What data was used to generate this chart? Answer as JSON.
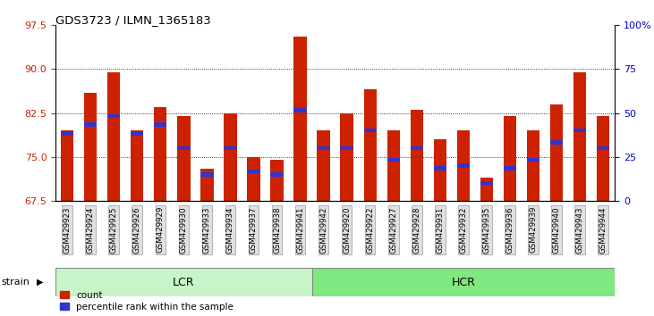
{
  "title": "GDS3723 / ILMN_1365183",
  "samples": [
    "GSM429923",
    "GSM429924",
    "GSM429925",
    "GSM429926",
    "GSM429929",
    "GSM429930",
    "GSM429933",
    "GSM429934",
    "GSM429937",
    "GSM429938",
    "GSM429941",
    "GSM429942",
    "GSM429920",
    "GSM429922",
    "GSM429927",
    "GSM429928",
    "GSM429931",
    "GSM429932",
    "GSM429935",
    "GSM429936",
    "GSM429939",
    "GSM429940",
    "GSM429943",
    "GSM429944"
  ],
  "count_values": [
    79.5,
    86.0,
    89.5,
    79.5,
    83.5,
    82.0,
    73.0,
    82.5,
    75.0,
    74.5,
    95.5,
    79.5,
    82.5,
    86.5,
    79.5,
    83.0,
    78.0,
    79.5,
    71.5,
    82.0,
    79.5,
    84.0,
    89.5,
    82.0
  ],
  "percentile_values": [
    79.0,
    80.5,
    82.0,
    79.0,
    80.5,
    76.5,
    72.0,
    76.5,
    72.5,
    72.0,
    83.0,
    76.5,
    76.5,
    79.5,
    74.5,
    76.5,
    73.0,
    73.5,
    70.5,
    73.0,
    74.5,
    77.5,
    79.5,
    76.5
  ],
  "group_labels": [
    "LCR",
    "HCR"
  ],
  "group_counts": [
    11,
    13
  ],
  "group_colors": [
    "#c8f5c8",
    "#80e880"
  ],
  "ylim_left": [
    67.5,
    97.5
  ],
  "yticks_left": [
    67.5,
    75.0,
    82.5,
    90.0,
    97.5
  ],
  "yticks_right_vals": [
    0,
    25,
    50,
    75,
    100
  ],
  "bar_color": "#cc2200",
  "blue_color": "#3333cc",
  "bar_width": 0.55,
  "bg_color": "#ffffff",
  "tick_label_color_left": "#cc2200",
  "tick_label_color_right": "#0000cc",
  "legend_items": [
    "count",
    "percentile rank within the sample"
  ],
  "strain_label": "strain"
}
